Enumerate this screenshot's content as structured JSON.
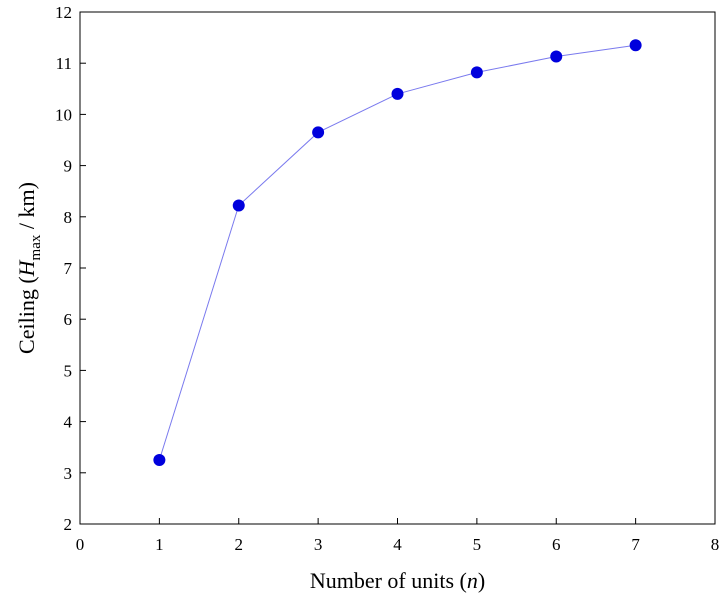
{
  "chart_data": {
    "type": "line",
    "x": [
      1,
      2,
      3,
      4,
      5,
      6,
      7
    ],
    "series": [
      {
        "values": [
          3.25,
          8.22,
          9.65,
          10.4,
          10.82,
          11.13,
          11.35
        ]
      }
    ],
    "xlabel": {
      "prefix": "Number of units (",
      "variable": "n",
      "suffix": ")"
    },
    "ylabel": {
      "prefix": "Ceiling (",
      "variable": "H",
      "subscript": "max",
      "suffix": " / km)"
    },
    "xlim": [
      0,
      8
    ],
    "ylim": [
      2,
      12
    ],
    "xticks": [
      0,
      1,
      2,
      3,
      4,
      5,
      6,
      7,
      8
    ],
    "yticks": [
      2,
      3,
      4,
      5,
      6,
      7,
      8,
      9,
      10,
      11,
      12
    ],
    "grid": false,
    "legend": "none",
    "colors": {
      "marker": "#0000dd",
      "line": "#7a7aee",
      "axis": "#000000"
    }
  }
}
